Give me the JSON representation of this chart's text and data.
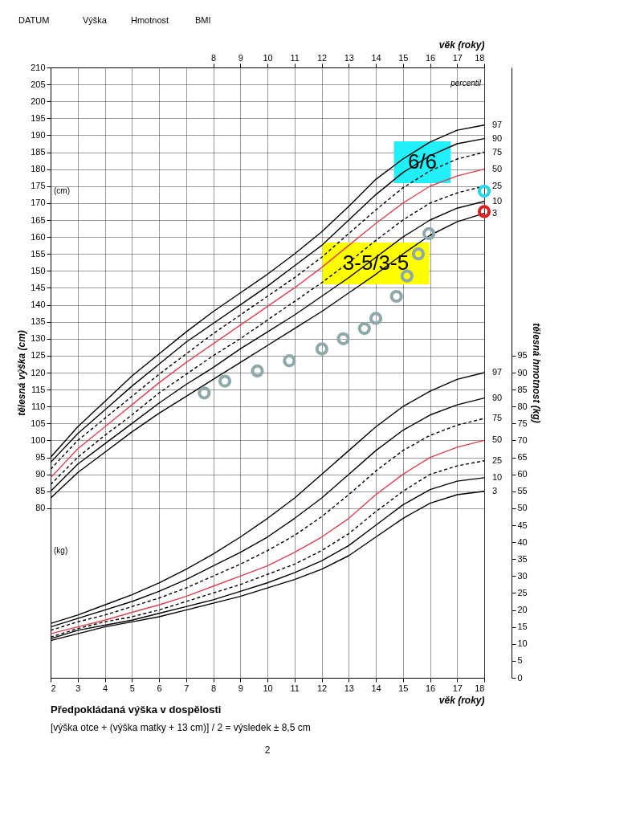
{
  "chart_data": {
    "type": "line",
    "xlabel": "věk (roky)",
    "x2label": "věk (roky)",
    "ylabel": "tělesná výška (cm)",
    "y2label": "tělesná hmotnost (kg)",
    "x": [
      2,
      3,
      4,
      5,
      6,
      7,
      8,
      9,
      10,
      11,
      12,
      13,
      14,
      15,
      16,
      17,
      18
    ],
    "xlim": [
      2,
      18
    ],
    "xticks": [
      2,
      3,
      4,
      5,
      6,
      7,
      8,
      9,
      10,
      11,
      12,
      13,
      14,
      15,
      16,
      17,
      18
    ],
    "x2lim": [
      2,
      18
    ],
    "x2ticks": [
      8,
      9,
      10,
      11,
      12,
      13,
      14,
      15,
      16,
      17,
      18
    ],
    "ylim": [
      30,
      210
    ],
    "yticks": [
      80,
      85,
      90,
      95,
      100,
      105,
      110,
      115,
      120,
      125,
      130,
      135,
      140,
      145,
      150,
      155,
      160,
      165,
      170,
      175,
      180,
      185,
      190,
      195,
      200,
      205,
      210
    ],
    "y2lim": [
      0,
      180
    ],
    "y2ticks": [
      0,
      5,
      10,
      15,
      20,
      25,
      30,
      35,
      40,
      45,
      50,
      55,
      60,
      65,
      70,
      75,
      80,
      85,
      90,
      95
    ],
    "grid": true,
    "series": [
      {
        "name": "97",
        "type": "line",
        "color": "#000000",
        "line_style": "solid",
        "values": [
          95,
          104,
          111.5,
          119,
          125.5,
          132,
          138,
          143.5,
          149,
          155,
          161.5,
          169,
          177,
          183,
          188,
          191.5,
          193
        ]
      },
      {
        "name": "90",
        "type": "line",
        "color": "#000000",
        "line_style": "solid",
        "values": [
          93.5,
          102,
          109,
          116,
          122.5,
          129,
          134.5,
          140,
          145.5,
          151.5,
          157.5,
          165,
          172.5,
          179,
          184,
          187.5,
          189
        ]
      },
      {
        "name": "75",
        "type": "line",
        "color": "#000000",
        "line_style": "dashed",
        "values": [
          91.5,
          100,
          106.5,
          113,
          119.5,
          125.5,
          131.5,
          137,
          142.5,
          148,
          154,
          161,
          168,
          174.5,
          179.5,
          183,
          185
        ]
      },
      {
        "name": "50",
        "type": "line",
        "color": "#e04050",
        "line_style": "solid",
        "values": [
          89,
          97.5,
          104,
          110.5,
          117,
          123,
          128.5,
          134,
          139.5,
          145,
          151,
          157.5,
          164,
          170,
          175,
          178,
          180
        ]
      },
      {
        "name": "25",
        "type": "line",
        "color": "#000000",
        "line_style": "dashed",
        "values": [
          87,
          95,
          101.5,
          107.5,
          114,
          119.5,
          125,
          130,
          135.5,
          141,
          146.5,
          152.5,
          159,
          165,
          170,
          173,
          175
        ]
      },
      {
        "name": "10",
        "type": "line",
        "color": "#000000",
        "line_style": "solid",
        "values": [
          85,
          93,
          99,
          105,
          111,
          116.5,
          121.5,
          127,
          132,
          137,
          142.5,
          148,
          154,
          160,
          165,
          168.5,
          170.5
        ]
      },
      {
        "name": "3",
        "type": "line",
        "color": "#000000",
        "line_style": "solid",
        "values": [
          83,
          90.5,
          96.5,
          102.5,
          108,
          113,
          118,
          123,
          128,
          133,
          138,
          143.5,
          149,
          155,
          160.5,
          164.5,
          167
        ]
      },
      {
        "name": "97",
        "type": "line",
        "axis": "y2",
        "color": "#000000",
        "line_style": "solid",
        "values": [
          16,
          18.5,
          21.5,
          24.5,
          28,
          32,
          36.5,
          41.5,
          47,
          53,
          60,
          67,
          74,
          80,
          84.5,
          88,
          90
        ]
      },
      {
        "name": "90",
        "type": "line",
        "axis": "y2",
        "color": "#000000",
        "line_style": "solid",
        "values": [
          15,
          17.5,
          20,
          22.5,
          25.5,
          29,
          33,
          37,
          41.5,
          47,
          53,
          60,
          67,
          73,
          77.5,
          80.5,
          82.5
        ]
      },
      {
        "name": "75",
        "type": "line",
        "axis": "y2",
        "color": "#000000",
        "line_style": "dashed",
        "values": [
          14,
          16.5,
          18.5,
          21,
          23.5,
          26.5,
          30,
          33.5,
          37.5,
          42,
          47.5,
          54,
          61,
          67,
          71.5,
          74.5,
          76.5
        ]
      },
      {
        "name": "50",
        "type": "line",
        "axis": "y2",
        "color": "#e04050",
        "line_style": "solid",
        "values": [
          13,
          15,
          17,
          19.3,
          21.5,
          24,
          27,
          30,
          33,
          37,
          41.5,
          47,
          54,
          60,
          65,
          68,
          70
        ]
      },
      {
        "name": "25",
        "type": "line",
        "axis": "y2",
        "color": "#000000",
        "line_style": "dashed",
        "values": [
          12,
          14.5,
          16.5,
          18,
          20,
          22.5,
          25,
          27.5,
          30.5,
          33.5,
          37.5,
          42.5,
          49,
          55,
          60,
          62.5,
          64
        ]
      },
      {
        "name": "10",
        "type": "line",
        "axis": "y2",
        "color": "#000000",
        "line_style": "solid",
        "values": [
          11.5,
          14,
          15.5,
          17,
          19,
          21,
          23,
          25.5,
          28,
          31,
          34.5,
          39,
          45,
          51,
          55.5,
          58,
          59
        ]
      },
      {
        "name": "3",
        "type": "line",
        "axis": "y2",
        "color": "#000000",
        "line_style": "solid",
        "values": [
          11,
          13,
          15,
          16.5,
          18,
          20,
          22,
          24,
          26.5,
          29,
          32,
          36,
          41.5,
          47,
          51.5,
          54,
          55
        ]
      },
      {
        "type": "scatter",
        "marker": "circle",
        "color": "#8fa9ab",
        "x": [
          7.67,
          8.43,
          9.63,
          10.81,
          12.01,
          12.8,
          13.58,
          14.0,
          14.76,
          15.15,
          15.57,
          15.96
        ],
        "values": [
          114,
          117.5,
          120.5,
          123.5,
          127,
          130,
          133,
          136,
          142.5,
          148.5,
          155,
          161
        ]
      },
      {
        "type": "scatter",
        "marker": "circle",
        "color": "#22d8e6",
        "x": [
          18
        ],
        "values": [
          173.5
        ]
      },
      {
        "type": "scatter",
        "marker": "circle",
        "color": "#e02020",
        "x": [
          18
        ],
        "values": [
          167.5
        ]
      }
    ],
    "annotations": [
      "(cm)",
      "(kg)",
      "percentil",
      "6/6",
      "3-5/3-5",
      "Předpokládaná výška v dospělosti",
      "[výška otce      + (výška matky      + 13 cm)] / 2 = výsledek      ± 8,5 cm",
      "DATUM",
      "Výška",
      "Hmotnost",
      "BMI",
      "2"
    ]
  }
}
